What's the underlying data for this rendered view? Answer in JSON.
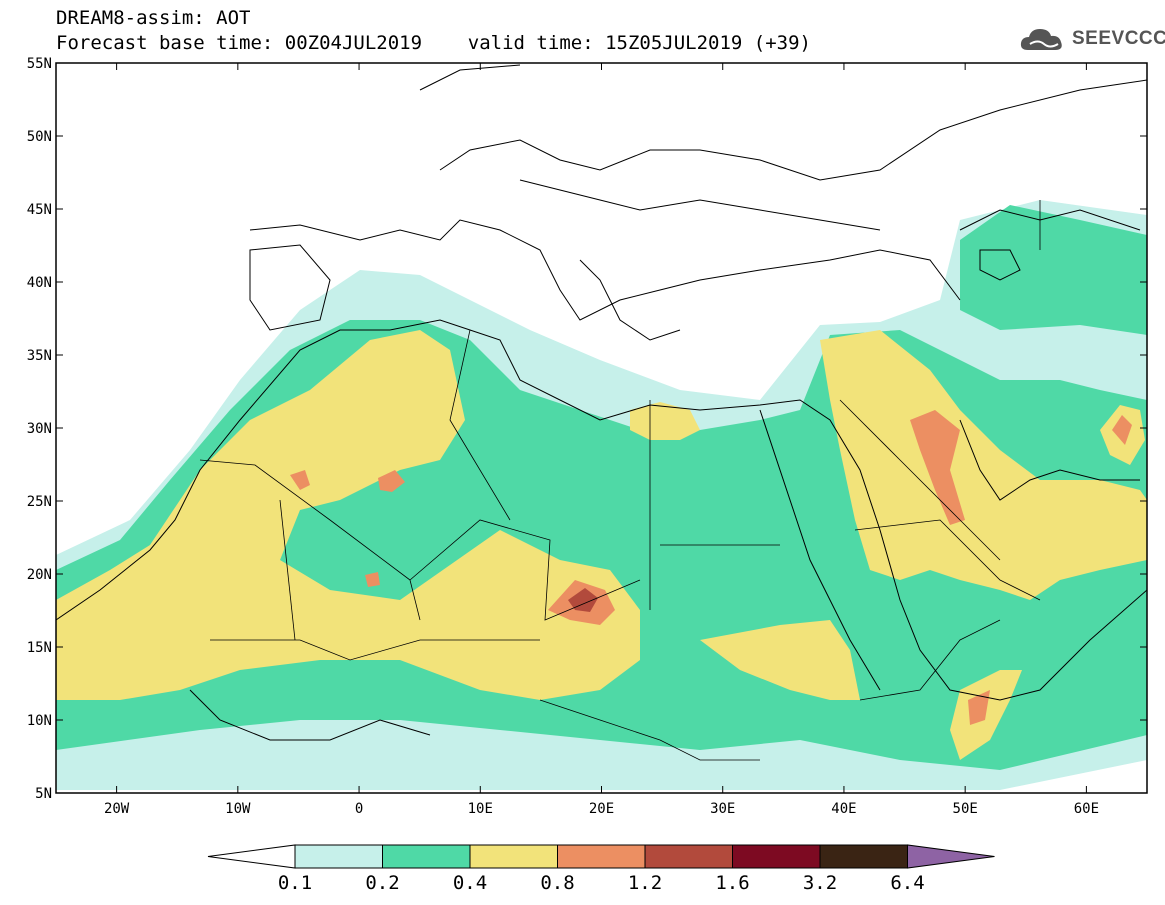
{
  "header": {
    "title": "DREAM8-assim: AOT",
    "subtitle": "Forecast base time: 00Z04JUL2019    valid time: 15Z05JUL2019 (+39)"
  },
  "logo": {
    "text": "SEEVCCC",
    "icon": "cloud-icon"
  },
  "map": {
    "lon_range": [
      -25,
      65
    ],
    "lat_range": [
      5,
      55
    ],
    "lat_ticks": [
      "55N",
      "50N",
      "45N",
      "40N",
      "35N",
      "30N",
      "25N",
      "20N",
      "15N",
      "10N",
      "5N"
    ],
    "lon_ticks": [
      "20W",
      "10W",
      "0",
      "10E",
      "20E",
      "30E",
      "40E",
      "50E",
      "60E"
    ]
  },
  "colorbar": {
    "labels": [
      "0.1",
      "0.2",
      "0.4",
      "0.8",
      "1.2",
      "1.6",
      "3.2",
      "6.4"
    ],
    "colors": [
      "#c6f0ea",
      "#4fd9a6",
      "#f2e37a",
      "#ec8f62",
      "#b24a3c",
      "#7d0a22",
      "#3a2414",
      "#8e63a4"
    ]
  }
}
